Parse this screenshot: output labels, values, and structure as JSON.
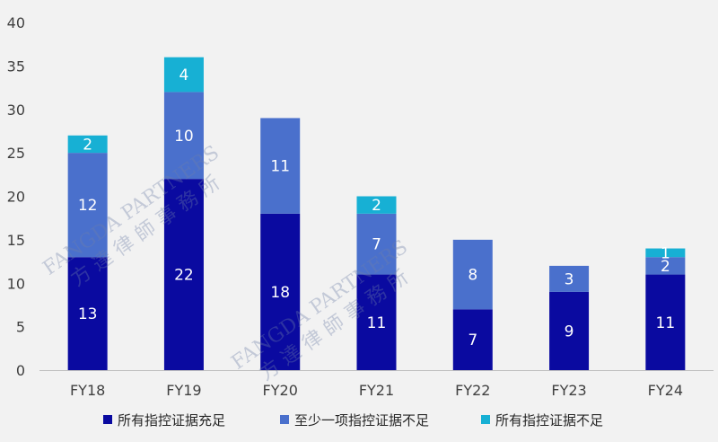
{
  "chart_data": {
    "type": "bar",
    "stacked": true,
    "categories": [
      "FY18",
      "FY19",
      "FY20",
      "FY21",
      "FY22",
      "FY23",
      "FY24"
    ],
    "series": [
      {
        "name": "所有指控证据充足",
        "color": "#0a0aa0",
        "values": [
          13,
          22,
          18,
          11,
          7,
          9,
          11
        ]
      },
      {
        "name": "至少一项指控证据不足",
        "color": "#4a70cc",
        "values": [
          12,
          10,
          11,
          7,
          8,
          3,
          2
        ]
      },
      {
        "name": "所有指控证据不足",
        "color": "#17b0d4",
        "values": [
          2,
          4,
          0,
          2,
          0,
          0,
          1
        ]
      }
    ],
    "ylim": [
      0,
      40
    ],
    "yticks": [
      0,
      5,
      10,
      15,
      20,
      25,
      30,
      35,
      40
    ],
    "title": "",
    "xlabel": "",
    "ylabel": "",
    "grid": false,
    "legend_position": "bottom"
  },
  "watermark": {
    "line1": "FANGDA PARTNERS",
    "line2": "方 達 律 師 事 務 所"
  }
}
